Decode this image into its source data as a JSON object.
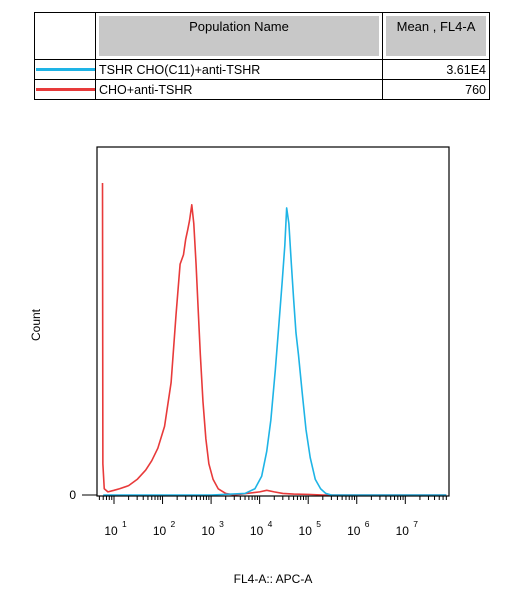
{
  "legend": {
    "header_name": "Population Name",
    "header_mean": "Mean , FL4-A",
    "rows": [
      {
        "color": "#1eb4e6",
        "name": "TSHR CHO(C11)+anti-TSHR",
        "mean": "3.61E4"
      },
      {
        "color": "#e83a3a",
        "name": "CHO+anti-TSHR",
        "mean": "760"
      }
    ]
  },
  "chart_data": {
    "type": "line",
    "title": "",
    "xlabel": "FL4-A:: APC-A",
    "ylabel": "Count",
    "x_scale": "log",
    "xlim": [
      4.5,
      80000000
    ],
    "ylim": [
      0,
      100
    ],
    "x_tick_labels": [
      {
        "value": 10,
        "base": "10",
        "exp": "1"
      },
      {
        "value": 100,
        "base": "10",
        "exp": "2"
      },
      {
        "value": 1000,
        "base": "10",
        "exp": "3"
      },
      {
        "value": 10000,
        "base": "10",
        "exp": "4"
      },
      {
        "value": 100000,
        "base": "10",
        "exp": "5"
      },
      {
        "value": 1000000,
        "base": "10",
        "exp": "6"
      },
      {
        "value": 10000000,
        "base": "10",
        "exp": "7"
      }
    ],
    "y_tick_labels": [
      {
        "value": 0,
        "label": "0"
      }
    ],
    "series": [
      {
        "name": "TSHR CHO(C11)+anti-TSHR",
        "color": "#1eb4e6",
        "x": [
          6,
          1000,
          5000,
          8000,
          11000,
          14000,
          17000,
          21000,
          25000,
          29000,
          33000,
          36000,
          40000,
          45000,
          50000,
          56000,
          63000,
          75000,
          90000,
          110000,
          140000,
          180000,
          230000,
          300000,
          1000000,
          70000000
        ],
        "y": [
          0,
          0,
          0.5,
          2,
          6,
          14,
          24,
          40,
          55,
          68,
          80,
          92,
          87,
          74,
          63,
          52,
          45,
          33,
          21,
          12,
          5,
          2,
          0.5,
          0,
          0,
          0
        ]
      },
      {
        "name": "CHO+anti-TSHR",
        "color": "#e83a3a",
        "x": [
          5.8,
          5.9,
          6.3,
          7.5,
          10,
          13,
          20,
          30,
          45,
          60,
          80,
          110,
          150,
          190,
          230,
          270,
          300,
          330,
          360,
          400,
          440,
          490,
          540,
          600,
          680,
          780,
          900,
          1100,
          1400,
          2000,
          3000,
          10000,
          14000,
          20000,
          30000,
          50000,
          100000,
          200000,
          70000000
        ],
        "y": [
          100,
          10,
          2,
          1,
          1.5,
          2,
          3,
          5,
          8,
          11,
          15,
          22,
          36,
          58,
          74,
          77,
          82,
          85,
          88,
          93,
          87,
          74,
          60,
          45,
          30,
          18,
          10,
          5,
          2,
          0.5,
          0,
          1,
          1.5,
          1,
          0.5,
          0.3,
          0.2,
          0,
          0
        ]
      }
    ]
  }
}
